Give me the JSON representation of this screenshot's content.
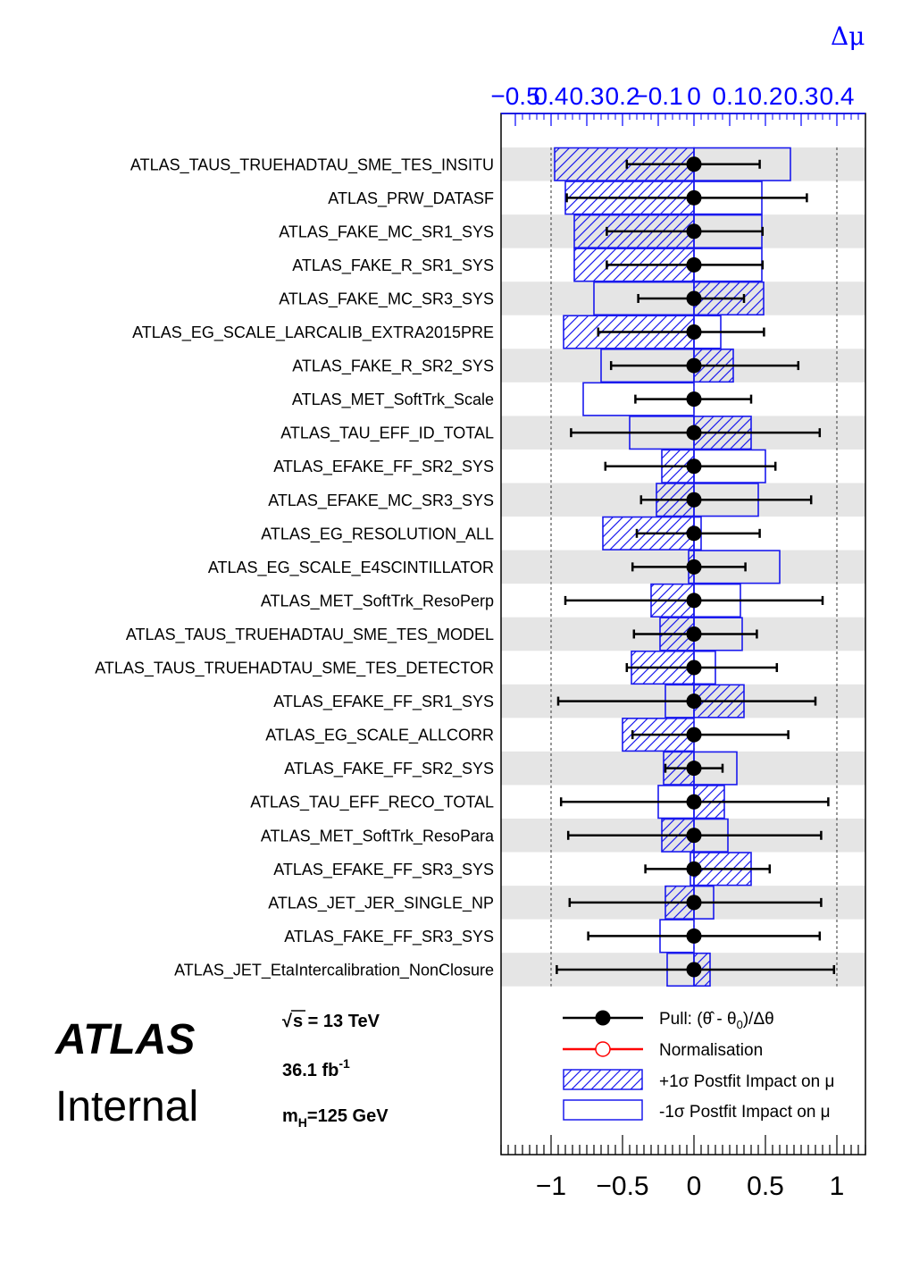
{
  "chart_data": {
    "type": "ranking-pulls",
    "top_axis_title": "Δμ",
    "top_ticks": [
      "−0.5",
      "0.4",
      "0.3",
      "0.2",
      "−0.1",
      "0",
      "0.1",
      "0.2",
      "0.3",
      "0.4"
    ],
    "bottom_ticks": [
      "−1",
      "−0.5",
      "0",
      "0.5",
      "1"
    ],
    "xlim_pull": [
      -1.35,
      1.2
    ],
    "xlim_impact": [
      -0.54,
      0.48
    ],
    "parameters": [
      {
        "name": "ATLAS_TAUS_TRUEHADTAU_SME_TES_INSITU",
        "pull": 0.0,
        "err_lo": -0.47,
        "err_hi": 0.46,
        "impact_up": -0.39,
        "impact_down": 0.27
      },
      {
        "name": "ATLAS_PRW_DATASF",
        "pull": 0.0,
        "err_lo": -0.89,
        "err_hi": 0.79,
        "impact_up": -0.36,
        "impact_down": 0.19
      },
      {
        "name": "ATLAS_FAKE_MC_SR1_SYS",
        "pull": 0.0,
        "err_lo": -0.61,
        "err_hi": 0.48,
        "impact_up": -0.335,
        "impact_down": 0.19
      },
      {
        "name": "ATLAS_FAKE_R_SR1_SYS",
        "pull": 0.0,
        "err_lo": -0.61,
        "err_hi": 0.48,
        "impact_up": -0.335,
        "impact_down": 0.19
      },
      {
        "name": "ATLAS_FAKE_MC_SR3_SYS",
        "pull": 0.0,
        "err_lo": -0.39,
        "err_hi": 0.35,
        "impact_up": 0.195,
        "impact_down": -0.28
      },
      {
        "name": "ATLAS_EG_SCALE_LARCALIB_EXTRA2015PRE",
        "pull": 0.0,
        "err_lo": -0.67,
        "err_hi": 0.49,
        "impact_up": -0.365,
        "impact_down": 0.075
      },
      {
        "name": "ATLAS_FAKE_R_SR2_SYS",
        "pull": 0.0,
        "err_lo": -0.58,
        "err_hi": 0.73,
        "impact_up": 0.11,
        "impact_down": -0.26
      },
      {
        "name": "ATLAS_MET_SoftTrk_Scale",
        "pull": 0.0,
        "err_lo": -0.41,
        "err_hi": 0.4,
        "impact_up": 0.0,
        "impact_down": -0.31
      },
      {
        "name": "ATLAS_TAU_EFF_ID_TOTAL",
        "pull": 0.0,
        "err_lo": -0.86,
        "err_hi": 0.88,
        "impact_up": 0.16,
        "impact_down": -0.18
      },
      {
        "name": "ATLAS_EFAKE_FF_SR2_SYS",
        "pull": 0.0,
        "err_lo": -0.62,
        "err_hi": 0.57,
        "impact_up": -0.09,
        "impact_down": 0.2
      },
      {
        "name": "ATLAS_EFAKE_MC_SR3_SYS",
        "pull": 0.0,
        "err_lo": -0.37,
        "err_hi": 0.82,
        "impact_up": -0.105,
        "impact_down": 0.18
      },
      {
        "name": "ATLAS_EG_RESOLUTION_ALL",
        "pull": 0.0,
        "err_lo": -0.4,
        "err_hi": 0.46,
        "impact_up": -0.255,
        "impact_down": 0.02
      },
      {
        "name": "ATLAS_EG_SCALE_E4SCINTILLATOR",
        "pull": 0.0,
        "err_lo": -0.43,
        "err_hi": 0.36,
        "impact_up": -0.015,
        "impact_down": 0.24
      },
      {
        "name": "ATLAS_MET_SoftTrk_ResoPerp",
        "pull": 0.0,
        "err_lo": -0.9,
        "err_hi": 0.9,
        "impact_up": -0.12,
        "impact_down": 0.13
      },
      {
        "name": "ATLAS_TAUS_TRUEHADTAU_SME_TES_MODEL",
        "pull": 0.0,
        "err_lo": -0.42,
        "err_hi": 0.44,
        "impact_up": -0.095,
        "impact_down": 0.135
      },
      {
        "name": "ATLAS_TAUS_TRUEHADTAU_SME_TES_DETECTOR",
        "pull": 0.0,
        "err_lo": -0.47,
        "err_hi": 0.58,
        "impact_up": -0.175,
        "impact_down": 0.06
      },
      {
        "name": "ATLAS_EFAKE_FF_SR1_SYS",
        "pull": 0.0,
        "err_lo": -0.95,
        "err_hi": 0.85,
        "impact_up": 0.14,
        "impact_down": -0.08
      },
      {
        "name": "ATLAS_EG_SCALE_ALLCORR",
        "pull": 0.0,
        "err_lo": -0.43,
        "err_hi": 0.66,
        "impact_up": -0.2,
        "impact_down": 0.0
      },
      {
        "name": "ATLAS_FAKE_FF_SR2_SYS",
        "pull": 0.0,
        "err_lo": -0.2,
        "err_hi": 0.2,
        "impact_up": -0.085,
        "impact_down": 0.12
      },
      {
        "name": "ATLAS_TAU_EFF_RECO_TOTAL",
        "pull": 0.0,
        "err_lo": -0.93,
        "err_hi": 0.94,
        "impact_up": 0.085,
        "impact_down": -0.1
      },
      {
        "name": "ATLAS_MET_SoftTrk_ResoPara",
        "pull": 0.0,
        "err_lo": -0.88,
        "err_hi": 0.89,
        "impact_up": -0.09,
        "impact_down": 0.095
      },
      {
        "name": "ATLAS_EFAKE_FF_SR3_SYS",
        "pull": 0.0,
        "err_lo": -0.34,
        "err_hi": 0.53,
        "impact_up": 0.16,
        "impact_down": -0.01
      },
      {
        "name": "ATLAS_JET_JER_SINGLE_NP",
        "pull": 0.0,
        "err_lo": -0.87,
        "err_hi": 0.89,
        "impact_up": -0.08,
        "impact_down": 0.055
      },
      {
        "name": "ATLAS_FAKE_FF_SR3_SYS",
        "pull": 0.0,
        "err_lo": -0.74,
        "err_hi": 0.88,
        "impact_up": 0.0,
        "impact_down": -0.095
      },
      {
        "name": "ATLAS_JET_EtaIntercalibration_NonClosure",
        "pull": 0.0,
        "err_lo": -0.96,
        "err_hi": 0.98,
        "impact_up": 0.045,
        "impact_down": -0.075
      }
    ],
    "legend": [
      {
        "key": "pull",
        "parts": [
          "Pull: (",
          "θ̂",
          " - θ",
          "0",
          ")/Δθ"
        ]
      },
      {
        "key": "norm",
        "text": "Normalisation"
      },
      {
        "key": "plus",
        "text": "+1σ Postfit Impact on μ"
      },
      {
        "key": "minus",
        "text": "-1σ Postfit Impact on μ"
      }
    ],
    "legend_placement": "bottom-right",
    "colors": {
      "points": "#000000",
      "impact": "#1a1aee",
      "normalisation": "#ff0000",
      "band": "#e5e5e5"
    }
  },
  "atlas_label": {
    "experiment": "ATLAS",
    "status": "Internal"
  },
  "info": {
    "sqrt": "√",
    "energy_rest": "s = 13 TeV",
    "lumi": "36.1 fb",
    "lumi_exp": "-1",
    "mass_m": "m",
    "mass_sub": "H",
    "mass_rest": "=125 GeV"
  }
}
